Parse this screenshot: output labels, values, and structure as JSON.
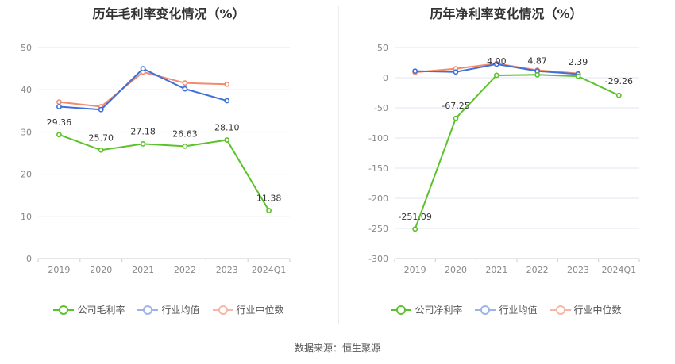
{
  "source_label": "数据来源：恒生聚源",
  "colors": {
    "company": "#5cc22a",
    "industry_avg": "#3f6fd9",
    "industry_median": "#f28a6b",
    "grid": "#e3e6ef",
    "axis_text": "#888888",
    "label_text": "#333333"
  },
  "chart_data": [
    {
      "type": "line",
      "title": "历年毛利率变化情况（%）",
      "categories": [
        "2019",
        "2020",
        "2021",
        "2022",
        "2023",
        "2024Q1"
      ],
      "ylim": [
        0,
        50
      ],
      "yticks": [
        0,
        10,
        20,
        30,
        40,
        50
      ],
      "grid": true,
      "legend_position": "bottom",
      "series": [
        {
          "name": "公司毛利率",
          "key": "company",
          "values": [
            29.36,
            25.7,
            27.18,
            26.63,
            28.1,
            11.38
          ],
          "labels": [
            "29.36",
            "25.70",
            "27.18",
            "26.63",
            "28.10",
            "11.38"
          ]
        },
        {
          "name": "行业均值",
          "key": "industry_avg",
          "values": [
            36.0,
            35.3,
            45.0,
            40.2,
            37.4,
            null
          ]
        },
        {
          "name": "行业中位数",
          "key": "industry_median",
          "values": [
            37.1,
            36.0,
            44.2,
            41.6,
            41.3,
            null
          ]
        }
      ]
    },
    {
      "type": "line",
      "title": "历年净利率变化情况（%）",
      "categories": [
        "2019",
        "2020",
        "2021",
        "2022",
        "2023",
        "2024Q1"
      ],
      "ylim": [
        -300,
        50
      ],
      "yticks": [
        -300,
        -250,
        -200,
        -150,
        -100,
        -50,
        0,
        50
      ],
      "grid": true,
      "legend_position": "bottom",
      "series": [
        {
          "name": "公司净利率",
          "key": "company",
          "values": [
            -251.09,
            -67.25,
            4.0,
            4.87,
            2.39,
            -29.26
          ],
          "labels": [
            "-251.09",
            "-67.25",
            "4.00",
            "4.87",
            "2.39",
            "-29.26"
          ]
        },
        {
          "name": "行业均值",
          "key": "industry_avg",
          "values": [
            11.0,
            9.5,
            22.5,
            11.0,
            6.0,
            null
          ]
        },
        {
          "name": "行业中位数",
          "key": "industry_median",
          "values": [
            9.0,
            15.0,
            23.5,
            12.5,
            7.0,
            null
          ]
        }
      ]
    }
  ]
}
